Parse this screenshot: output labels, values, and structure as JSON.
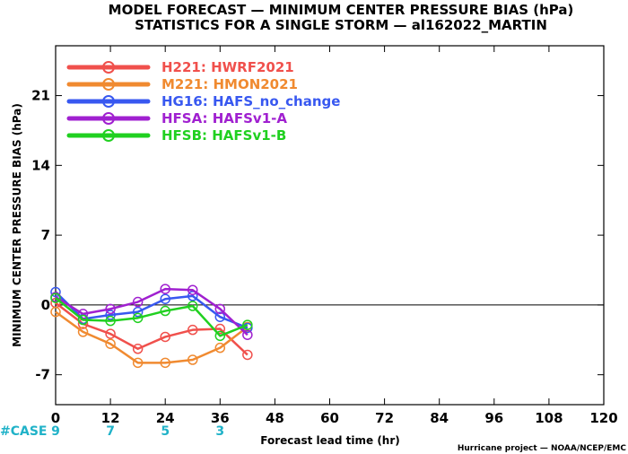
{
  "header": {
    "title_line1": "MODEL FORECAST — MINIMUM CENTER PRESSURE BIAS (hPa)",
    "title_line2": "STATISTICS FOR A SINGLE STORM — al162022_MARTIN"
  },
  "footer": {
    "case_label": "#CASE",
    "credit": "Hurricane project — NOAA/NCEP/EMC"
  },
  "chart_data": {
    "type": "line",
    "title": "MODEL FORECAST — MINIMUM CENTER PRESSURE BIAS (hPa)",
    "subtitle": "STATISTICS FOR A SINGLE STORM — al162022_MARTIN",
    "xlabel": "Forecast lead time (hr)",
    "ylabel": "MINIMUM CENTER PRESSURE BIAS (hPa)",
    "xlim": [
      0,
      120
    ],
    "ylim": [
      -10,
      26
    ],
    "xticks": [
      0,
      12,
      24,
      36,
      48,
      60,
      72,
      84,
      96,
      108,
      120
    ],
    "yticks": [
      -7,
      0,
      7,
      14,
      21
    ],
    "zero_line": true,
    "legend_position": "top-left",
    "case_counts": [
      {
        "x": 0,
        "n": "9"
      },
      {
        "x": 12,
        "n": "7"
      },
      {
        "x": 24,
        "n": "5"
      },
      {
        "x": 36,
        "n": "3"
      }
    ],
    "series": [
      {
        "name": "H221: HWRF2021",
        "color": "#f0504c",
        "x": [
          0,
          6,
          12,
          18,
          24,
          30,
          36,
          42
        ],
        "y": [
          0.2,
          -1.9,
          -2.9,
          -4.4,
          -3.2,
          -2.5,
          -2.4,
          -5.0
        ]
      },
      {
        "name": "M221: HMON2021",
        "color": "#f08a30",
        "x": [
          0,
          6,
          12,
          18,
          24,
          30,
          36,
          42
        ],
        "y": [
          -0.7,
          -2.7,
          -3.9,
          -5.8,
          -5.8,
          -5.5,
          -4.3,
          -2.2
        ]
      },
      {
        "name": "HG16: HAFS_no_change",
        "color": "#3858f0",
        "x": [
          0,
          6,
          12,
          18,
          24,
          30,
          36,
          42
        ],
        "y": [
          1.3,
          -1.4,
          -1.0,
          -0.7,
          0.6,
          0.9,
          -1.2,
          -2.3
        ]
      },
      {
        "name": "HFSA: HAFSv1-A",
        "color": "#a020d0",
        "x": [
          0,
          6,
          12,
          18,
          24,
          30,
          36,
          42
        ],
        "y": [
          0.8,
          -0.9,
          -0.4,
          0.3,
          1.6,
          1.5,
          -0.4,
          -3.0
        ]
      },
      {
        "name": "HFSB: HAFSv1-B",
        "color": "#20d020",
        "x": [
          0,
          6,
          12,
          18,
          24,
          30,
          36,
          42
        ],
        "y": [
          0.7,
          -1.5,
          -1.6,
          -1.3,
          -0.6,
          -0.1,
          -3.1,
          -2.0
        ]
      }
    ]
  }
}
